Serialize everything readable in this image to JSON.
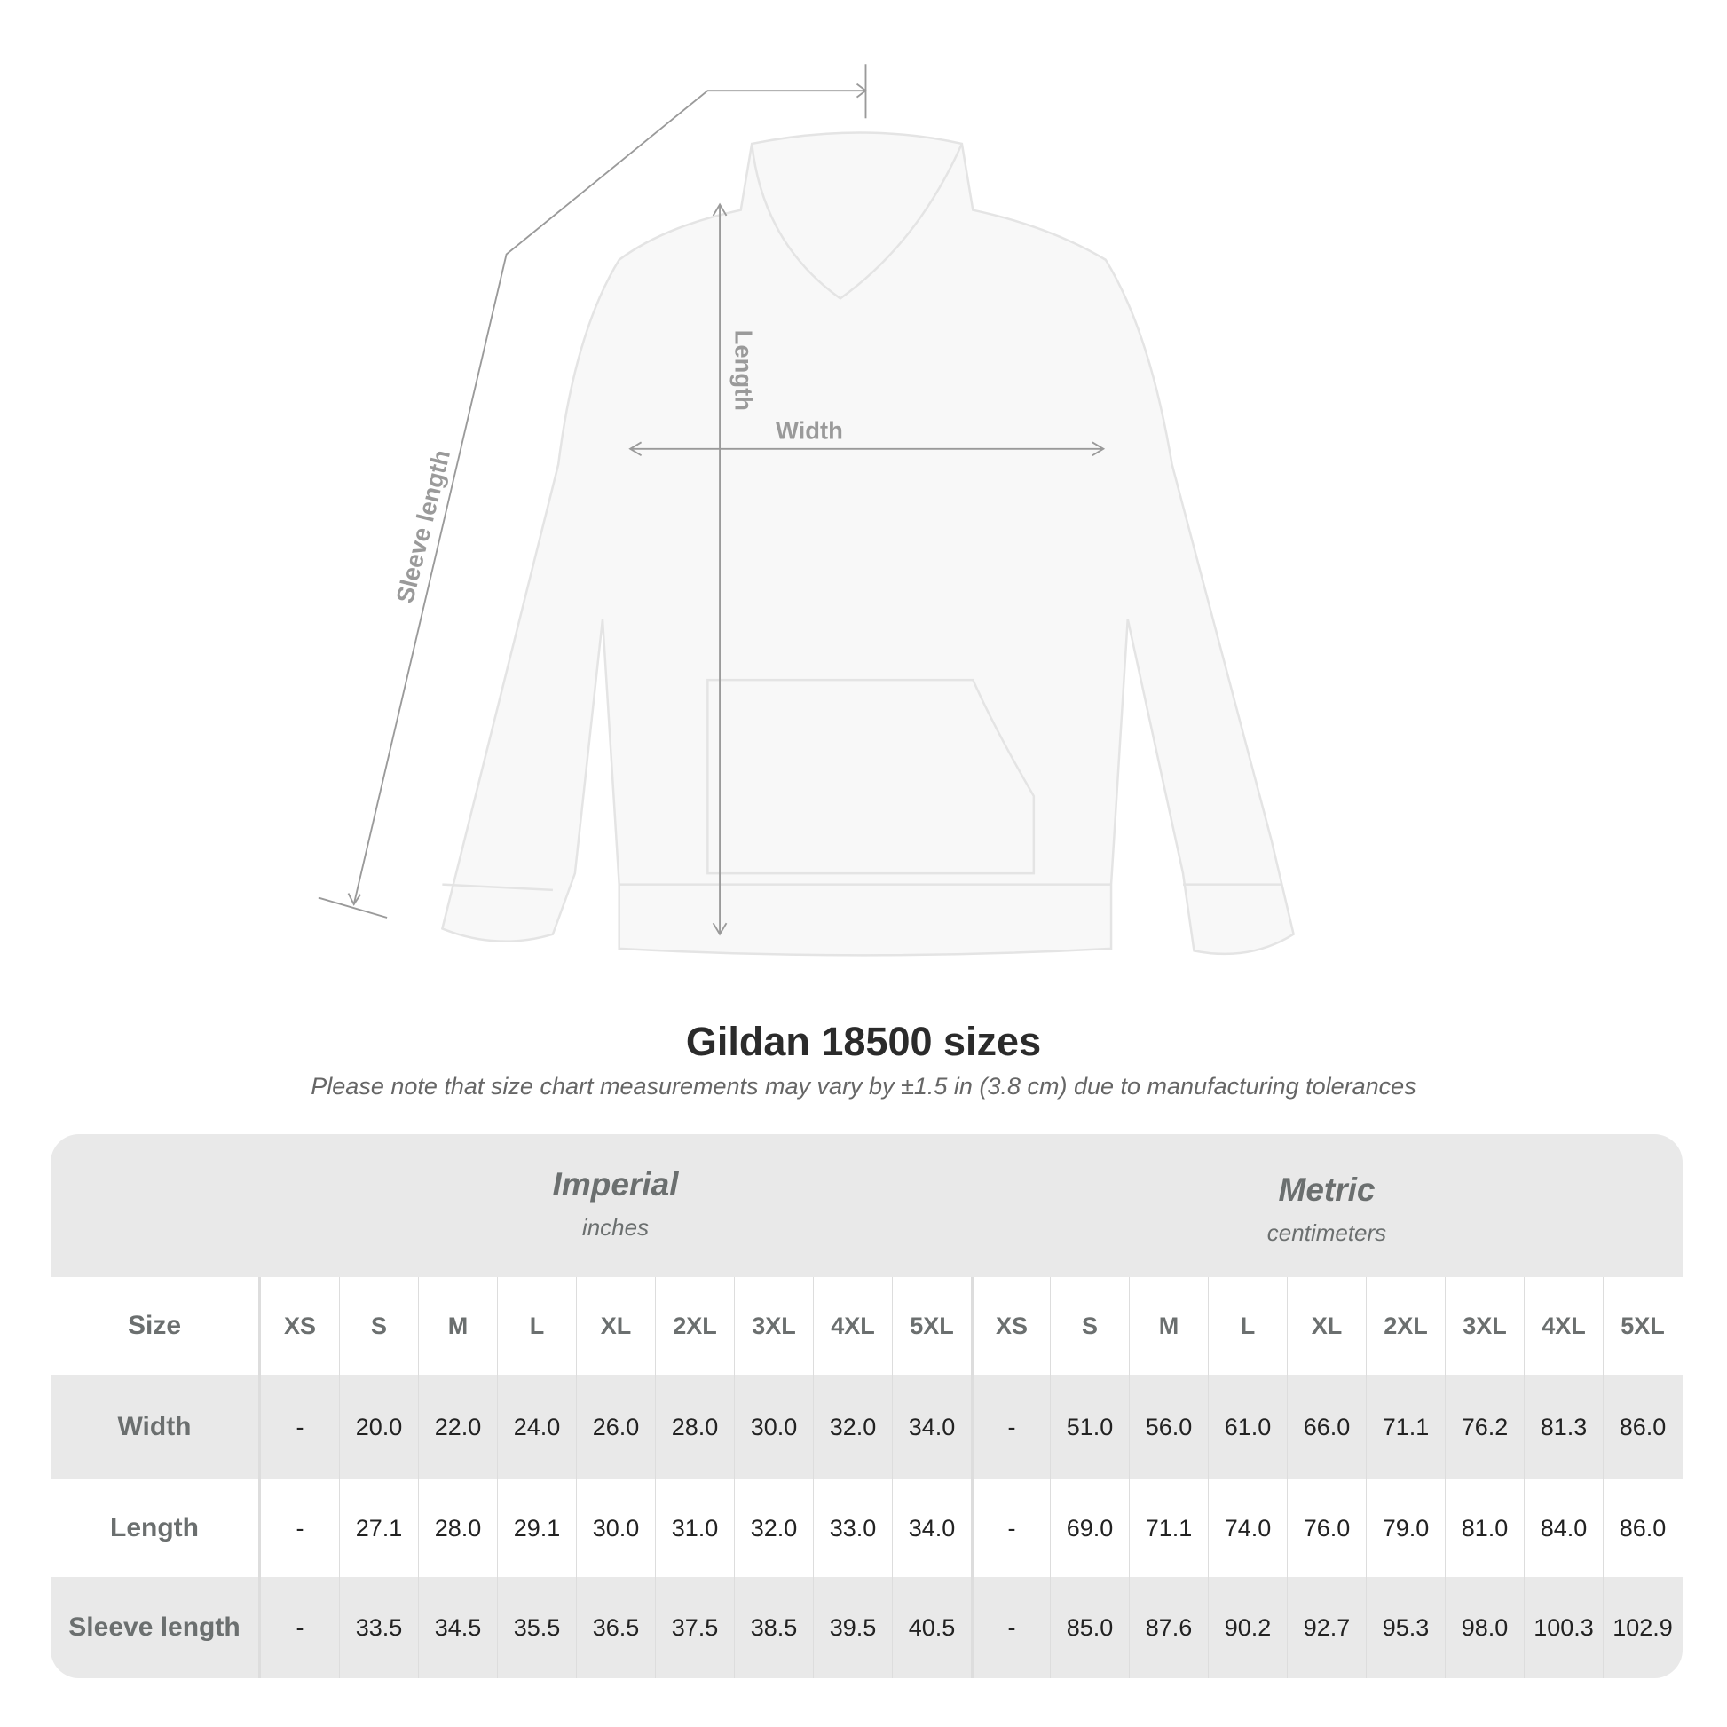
{
  "diagram": {
    "labels": {
      "sleeve": "Sleeve length",
      "length": "Length",
      "width": "Width"
    }
  },
  "title": "Gildan 18500 sizes",
  "note": "Please note that size chart measurements may vary by ±1.5 in (3.8 cm) due to manufacturing tolerances",
  "table": {
    "imperial": {
      "heading": "Imperial",
      "unit": "inches"
    },
    "metric": {
      "heading": "Metric",
      "unit": "centimeters"
    },
    "size_label": "Size",
    "sizes": [
      "XS",
      "S",
      "M",
      "L",
      "XL",
      "2XL",
      "3XL",
      "4XL",
      "5XL"
    ],
    "rows": [
      {
        "label": "Width",
        "imperial": [
          "-",
          "20.0",
          "22.0",
          "24.0",
          "26.0",
          "28.0",
          "30.0",
          "32.0",
          "34.0"
        ],
        "metric": [
          "-",
          "51.0",
          "56.0",
          "61.0",
          "66.0",
          "71.1",
          "76.2",
          "81.3",
          "86.0"
        ]
      },
      {
        "label": "Length",
        "imperial": [
          "-",
          "27.1",
          "28.0",
          "29.1",
          "30.0",
          "31.0",
          "32.0",
          "33.0",
          "34.0"
        ],
        "metric": [
          "-",
          "69.0",
          "71.1",
          "74.0",
          "76.0",
          "79.0",
          "81.0",
          "84.0",
          "86.0"
        ]
      },
      {
        "label": "Sleeve length",
        "imperial": [
          "-",
          "33.5",
          "34.5",
          "35.5",
          "36.5",
          "37.5",
          "38.5",
          "39.5",
          "40.5"
        ],
        "metric": [
          "-",
          "85.0",
          "87.6",
          "90.2",
          "92.7",
          "95.3",
          "98.0",
          "100.3",
          "102.9"
        ]
      }
    ]
  }
}
